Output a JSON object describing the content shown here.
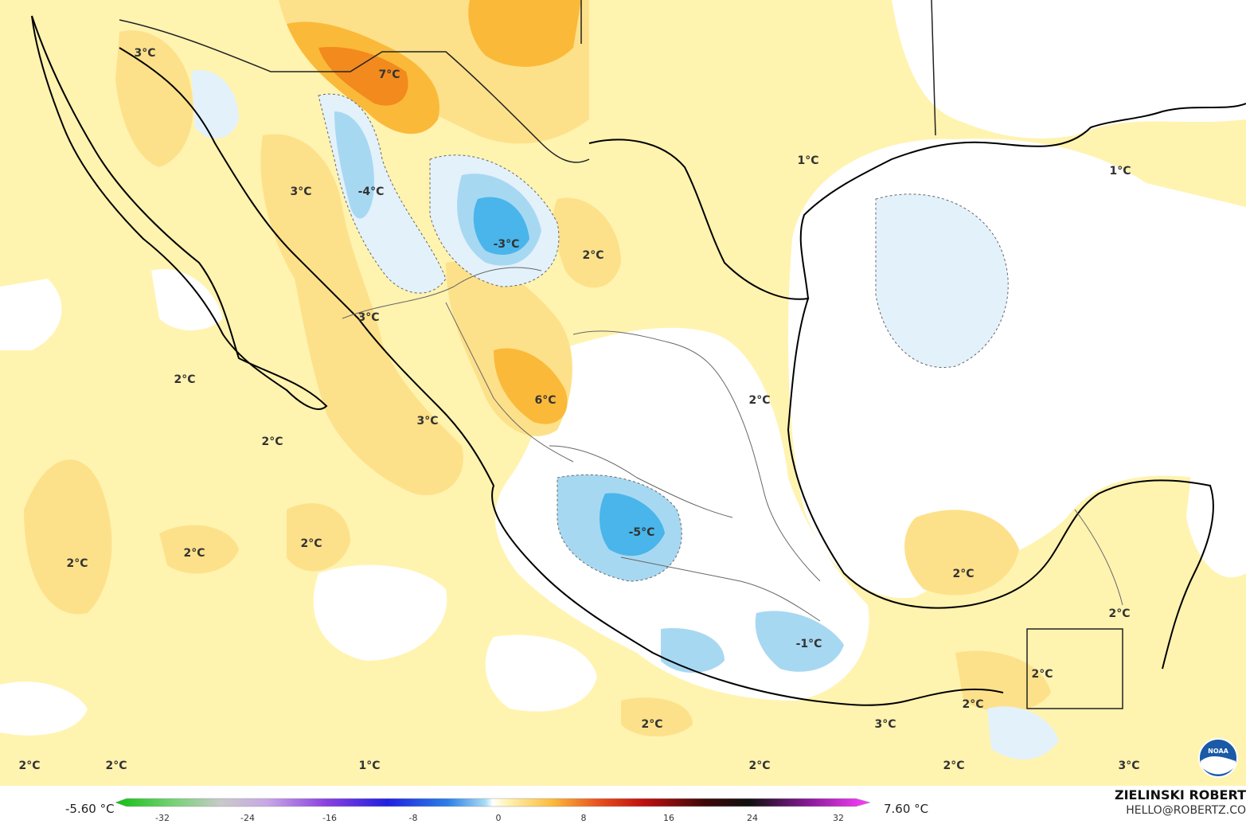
{
  "map": {
    "labels": [
      {
        "text": "3°C"
      },
      {
        "text": "7°C"
      },
      {
        "text": "-4°C"
      },
      {
        "text": "3°C"
      },
      {
        "text": "-3°C"
      },
      {
        "text": "2°C"
      },
      {
        "text": "1°C"
      },
      {
        "text": "1°C"
      },
      {
        "text": "3°C"
      },
      {
        "text": "2°C"
      },
      {
        "text": "6°C"
      },
      {
        "text": "2°C"
      },
      {
        "text": "3°C"
      },
      {
        "text": "2°C"
      },
      {
        "text": "2°C"
      },
      {
        "text": "2°C"
      },
      {
        "text": "2°C"
      },
      {
        "text": "-5°C"
      },
      {
        "text": "2°C"
      },
      {
        "text": "2°C"
      },
      {
        "text": "-1°C"
      },
      {
        "text": "2°C"
      },
      {
        "text": "2°C"
      },
      {
        "text": "2°C"
      },
      {
        "text": "3°C"
      },
      {
        "text": "2°C"
      },
      {
        "text": "2°C"
      },
      {
        "text": "1°C"
      },
      {
        "text": "2°C"
      },
      {
        "text": "2°C"
      },
      {
        "text": "3°C"
      }
    ]
  },
  "legend": {
    "min_label": "-5.60 °C",
    "max_label": "7.60 °C",
    "ticks": [
      "-32",
      "-24",
      "-16",
      "-8",
      "0",
      "8",
      "16",
      "24",
      "32"
    ]
  },
  "credit": {
    "name": "ZIELINSKI ROBERT",
    "email": "HELLO@ROBERTZ.CO"
  },
  "logo": {
    "text": "NOAA"
  },
  "colors": {
    "ocean_neutral": "#ffffff",
    "warm_light": "#fff3b0",
    "warm_mid": "#fde18a",
    "warm_orange": "#fbb93a",
    "warm_hot": "#f28a1e",
    "cool_light": "#e3f1fb",
    "cool_mid": "#a7d8f2",
    "cool_deep": "#49b5ea"
  }
}
